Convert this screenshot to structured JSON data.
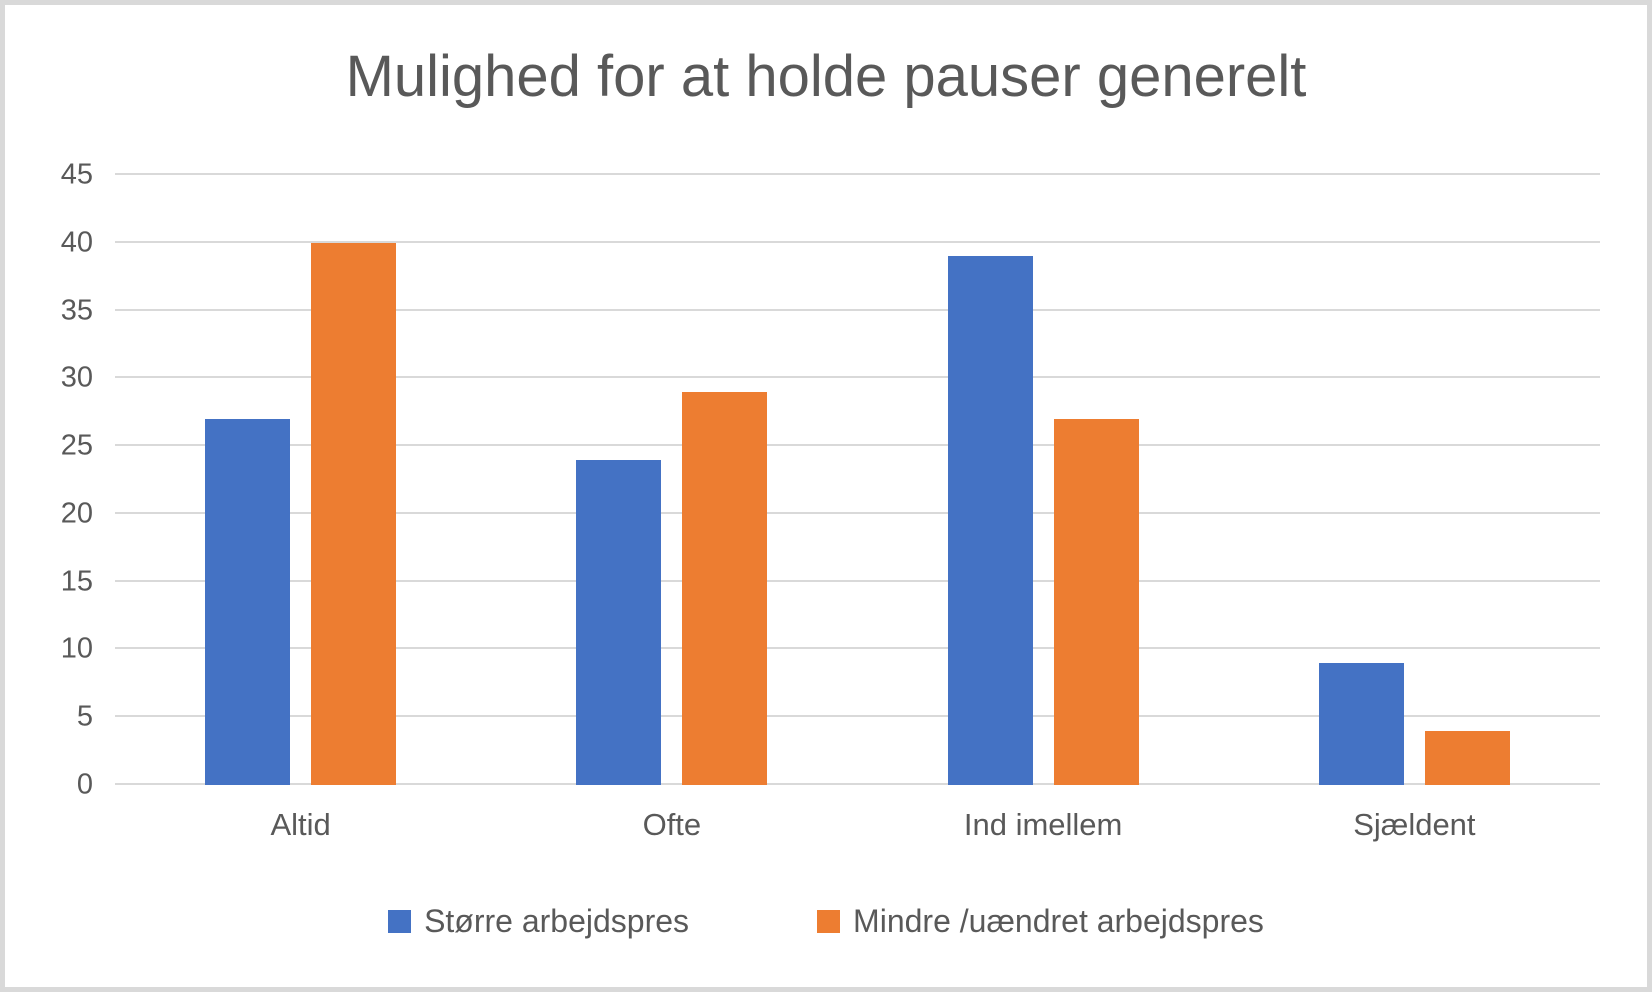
{
  "chart_data": {
    "type": "bar",
    "title": "Mulighed for at holde pauser generelt",
    "categories": [
      "Altid",
      "Ofte",
      "Ind imellem",
      "Sjældent"
    ],
    "series": [
      {
        "name": "Større arbejdspres",
        "color": "#4472C4",
        "values": [
          27,
          24,
          39,
          9
        ]
      },
      {
        "name": "Mindre /uændret arbejdspres",
        "color": "#ED7D31",
        "values": [
          40,
          29,
          27,
          4
        ]
      }
    ],
    "y_axis": {
      "min": 0,
      "max": 45,
      "step": 5,
      "ticks": [
        0,
        5,
        10,
        15,
        20,
        25,
        30,
        35,
        40,
        45
      ]
    },
    "xlabel": "",
    "ylabel": "",
    "grid": true,
    "legend_position": "bottom"
  },
  "colors": {
    "gridline": "#D9D9D9",
    "frame_border": "#D9D9D9",
    "text": "#595959",
    "background": "#FFFFFF"
  }
}
